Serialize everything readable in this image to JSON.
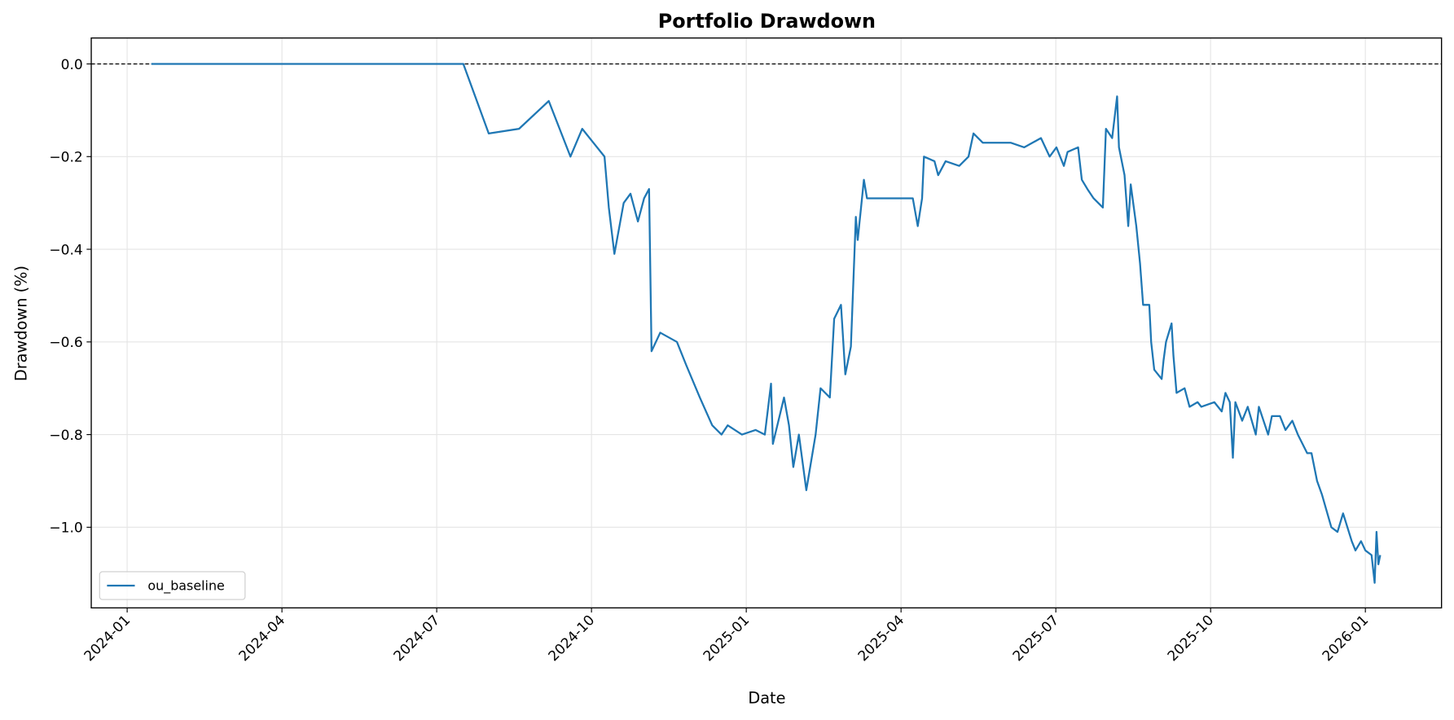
{
  "chart_data": {
    "type": "line",
    "title": "Portfolio Drawdown",
    "xlabel": "Date",
    "ylabel": "Drawdown (%)",
    "x": [
      2024.039,
      2024.543,
      2024.584,
      2024.633,
      2024.681,
      2024.716,
      2024.735,
      2024.753,
      2024.771,
      2024.778,
      2024.787,
      2024.802,
      2024.813,
      2024.825,
      2024.835,
      2024.843,
      2024.847,
      2024.861,
      2024.888,
      2024.903,
      2024.925,
      2024.945,
      2024.96,
      2024.97,
      2024.993,
      2025.015,
      2025.03,
      2025.04,
      2025.043,
      2025.061,
      2025.069,
      2025.076,
      2025.085,
      2025.097,
      2025.112,
      2025.12,
      2025.135,
      2025.142,
      2025.153,
      2025.16,
      2025.169,
      2025.177,
      2025.18,
      2025.19,
      2025.195,
      2025.269,
      2025.277,
      2025.284,
      2025.287,
      2025.304,
      2025.31,
      2025.322,
      2025.344,
      2025.359,
      2025.367,
      2025.382,
      2025.427,
      2025.449,
      2025.476,
      2025.49,
      2025.501,
      2025.513,
      2025.519,
      2025.536,
      2025.542,
      2025.551,
      2025.561,
      2025.576,
      2025.581,
      2025.591,
      2025.599,
      2025.602,
      2025.611,
      2025.617,
      2025.621,
      2025.63,
      2025.636,
      2025.641,
      2025.651,
      2025.654,
      2025.659,
      2025.671,
      2025.674,
      2025.678,
      2025.687,
      2025.69,
      2025.695,
      2025.708,
      2025.716,
      2025.729,
      2025.735,
      2025.756,
      2025.768,
      2025.774,
      2025.781,
      2025.786,
      2025.79,
      2025.801,
      2025.81,
      2025.823,
      2025.828,
      2025.843,
      2025.849,
      2025.862,
      2025.871,
      2025.882,
      2025.891,
      2025.906,
      2025.913,
      2025.922,
      2025.93,
      2025.945,
      2025.955,
      2025.964,
      2025.978,
      2025.984,
      2025.993,
      2026.0,
      2026.01,
      2026.015,
      2026.018,
      2026.021,
      2026.024
    ],
    "series": [
      {
        "name": "ou_baseline",
        "color": "#1f77b4",
        "values": [
          0,
          0,
          -0.15,
          -0.14,
          -0.08,
          -0.2,
          -0.14,
          -0.17,
          -0.2,
          -0.31,
          -0.41,
          -0.3,
          -0.28,
          -0.34,
          -0.29,
          -0.27,
          -0.62,
          -0.58,
          -0.6,
          -0.65,
          -0.72,
          -0.78,
          -0.8,
          -0.78,
          -0.8,
          -0.79,
          -0.8,
          -0.69,
          -0.82,
          -0.72,
          -0.78,
          -0.87,
          -0.8,
          -0.92,
          -0.8,
          -0.7,
          -0.72,
          -0.55,
          -0.52,
          -0.67,
          -0.61,
          -0.33,
          -0.38,
          -0.25,
          -0.29,
          -0.29,
          -0.35,
          -0.29,
          -0.2,
          -0.21,
          -0.24,
          -0.21,
          -0.22,
          -0.2,
          -0.15,
          -0.17,
          -0.17,
          -0.18,
          -0.16,
          -0.2,
          -0.18,
          -0.22,
          -0.19,
          -0.18,
          -0.25,
          -0.27,
          -0.29,
          -0.31,
          -0.14,
          -0.16,
          -0.07,
          -0.18,
          -0.24,
          -0.35,
          -0.26,
          -0.35,
          -0.43,
          -0.52,
          -0.52,
          -0.6,
          -0.66,
          -0.68,
          -0.64,
          -0.6,
          -0.56,
          -0.63,
          -0.71,
          -0.7,
          -0.74,
          -0.73,
          -0.74,
          -0.73,
          -0.75,
          -0.71,
          -0.73,
          -0.85,
          -0.73,
          -0.77,
          -0.74,
          -0.8,
          -0.74,
          -0.8,
          -0.76,
          -0.76,
          -0.79,
          -0.77,
          -0.8,
          -0.84,
          -0.84,
          -0.9,
          -0.93,
          -1.0,
          -1.01,
          -0.97,
          -1.03,
          -1.05,
          -1.03,
          -1.05,
          -1.06,
          -1.12,
          -1.01,
          -1.08,
          -1.06
        ]
      }
    ],
    "hline": 0,
    "xlim": [
      2023.942,
      2026.123
    ],
    "xticks": [
      {
        "value": 2024.0,
        "label": "2024-01"
      },
      {
        "value": 2024.25,
        "label": "2024-04"
      },
      {
        "value": 2024.5,
        "label": "2024-07"
      },
      {
        "value": 2024.75,
        "label": "2024-10"
      },
      {
        "value": 2025.0,
        "label": "2025-01"
      },
      {
        "value": 2025.25,
        "label": "2025-04"
      },
      {
        "value": 2025.5,
        "label": "2025-07"
      },
      {
        "value": 2025.75,
        "label": "2025-10"
      },
      {
        "value": 2026.0,
        "label": "2026-01"
      }
    ],
    "ylim": [
      -1.174,
      0.056
    ],
    "yticks": [
      {
        "value": 0,
        "label": "0.0"
      },
      {
        "value": -0.2,
        "label": "−0.2"
      },
      {
        "value": -0.4,
        "label": "−0.4"
      },
      {
        "value": -0.6,
        "label": "−0.6"
      },
      {
        "value": -0.8,
        "label": "−0.8"
      },
      {
        "value": -1.0,
        "label": "−1.0"
      }
    ],
    "grid": true,
    "legend": "lower left"
  }
}
